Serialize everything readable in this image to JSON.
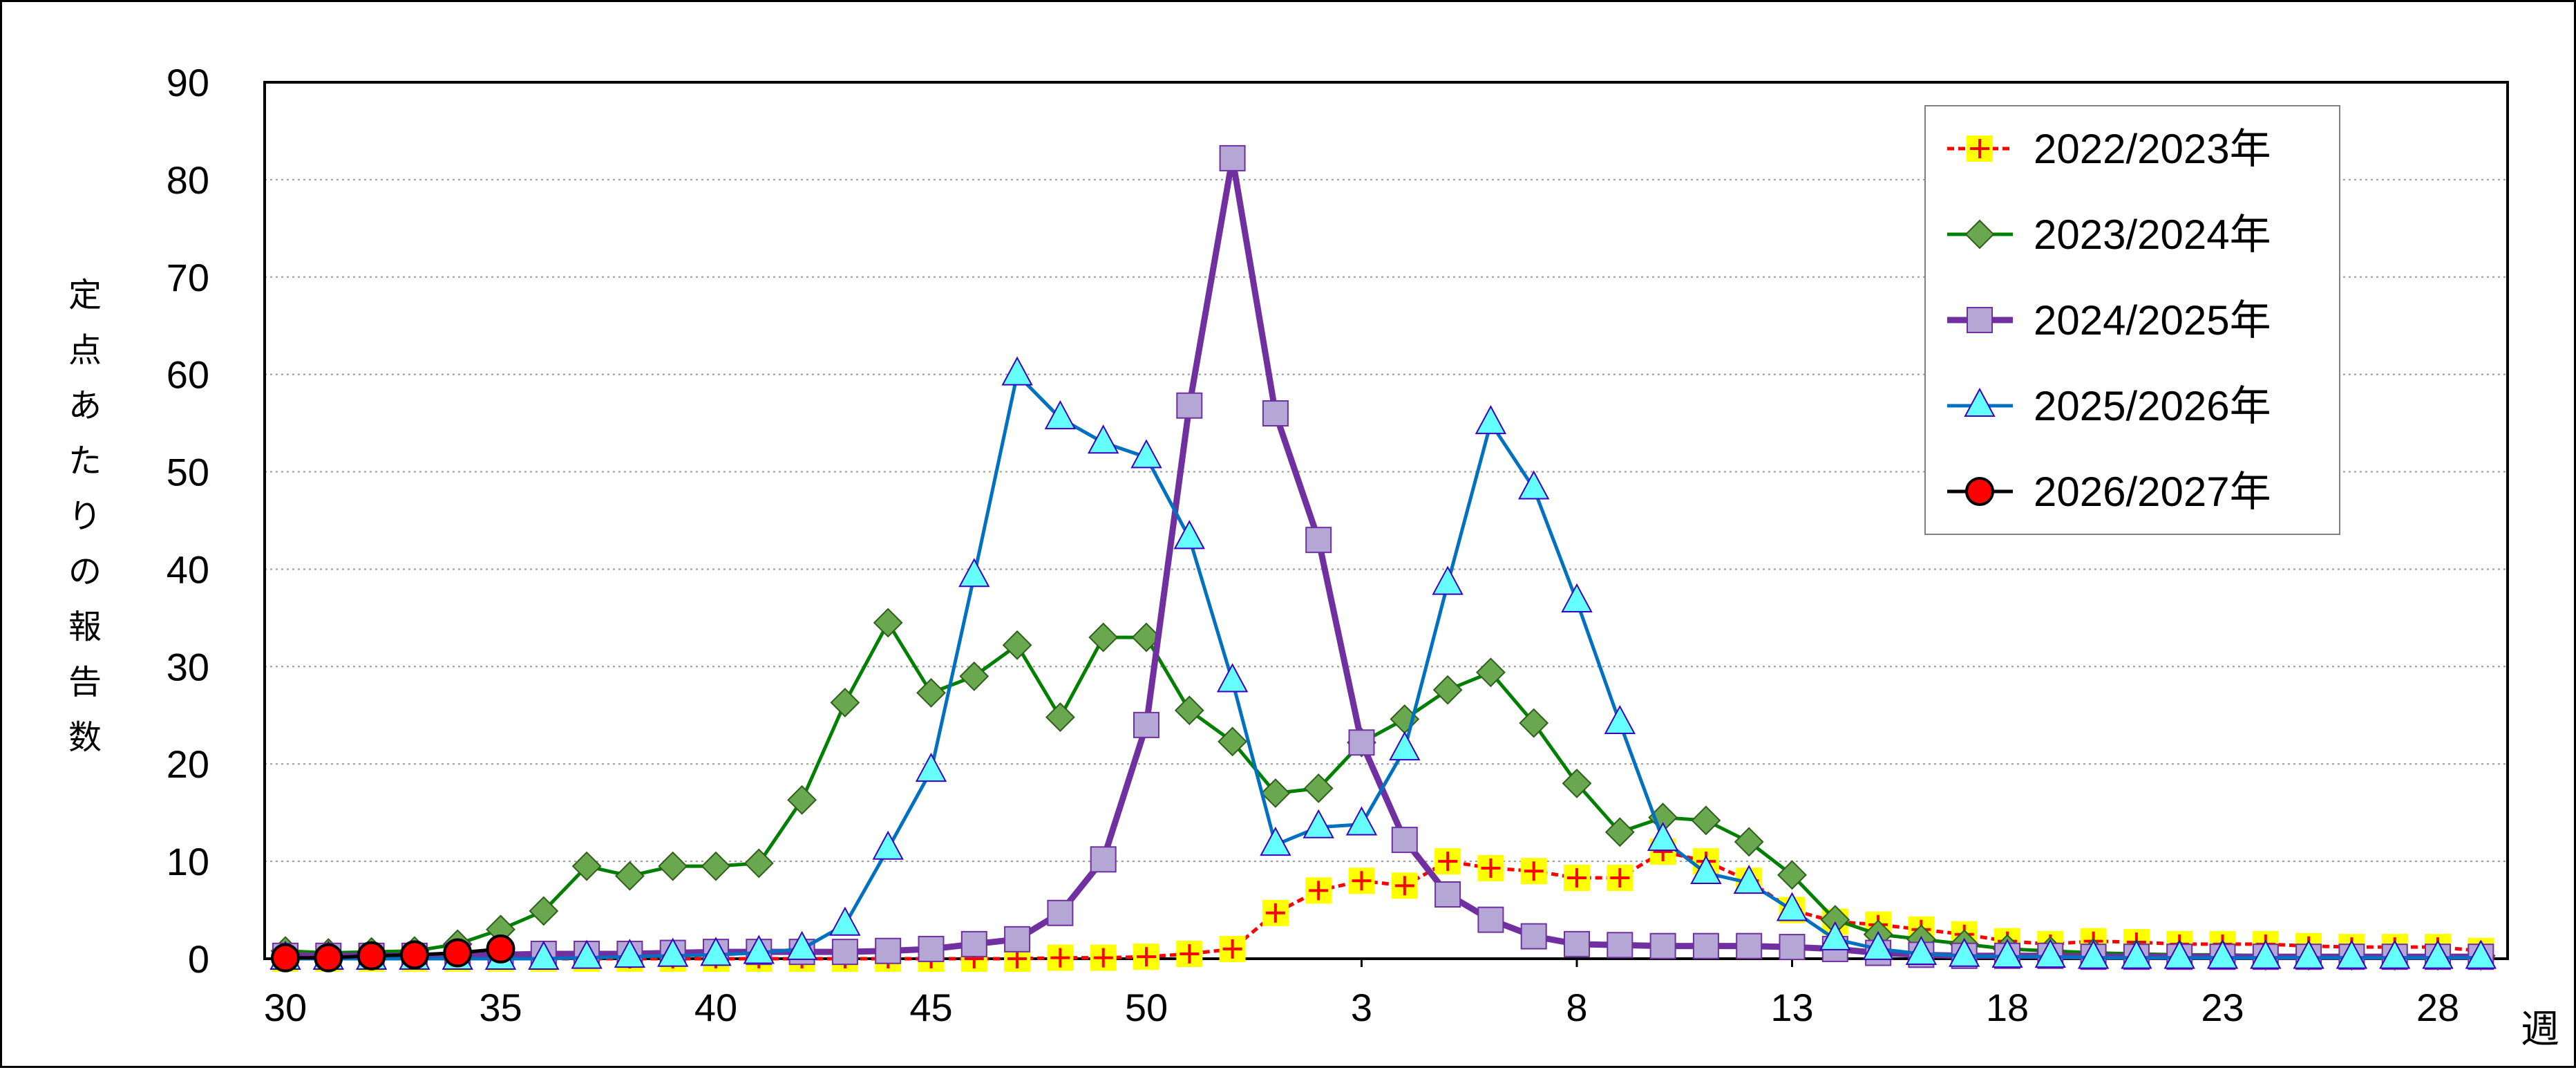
{
  "chart_data": {
    "type": "line",
    "title": "",
    "ylabel": "定点あたりの報告数",
    "xlabel": "週",
    "ylim": [
      0,
      90
    ],
    "yticks": [
      0,
      10,
      20,
      30,
      40,
      50,
      60,
      70,
      80,
      90
    ],
    "grid": "horizontal dotted",
    "legend_position": "top-right",
    "weeks": [
      30,
      31,
      32,
      33,
      34,
      35,
      36,
      37,
      38,
      39,
      40,
      41,
      42,
      43,
      44,
      45,
      46,
      47,
      48,
      49,
      50,
      51,
      52,
      1,
      2,
      3,
      4,
      5,
      6,
      7,
      8,
      9,
      10,
      11,
      12,
      13,
      14,
      15,
      16,
      17,
      18,
      19,
      20,
      21,
      22,
      23,
      24,
      25,
      26,
      27,
      28,
      29
    ],
    "xtick_labels": [
      "30",
      "35",
      "40",
      "45",
      "50",
      "3",
      "8",
      "13",
      "18",
      "23",
      "28"
    ],
    "series": [
      {
        "name": "2022/2023年",
        "color": "#ff0000",
        "marker": "cross-square",
        "marker_fill": "#ffff00",
        "line_style": "dashed",
        "values": [
          0.0,
          0.0,
          0.0,
          0.0,
          0.0,
          0.0,
          0.0,
          0.0,
          0.0,
          0.0,
          0.0,
          0.0,
          -0.2,
          -0.3,
          -0.2,
          -0.1,
          -0.1,
          0.0,
          0.1,
          0.1,
          0.2,
          0.5,
          1.0,
          4.7,
          7.0,
          8.0,
          7.5,
          10.0,
          9.3,
          9.0,
          8.3,
          8.3,
          11.0,
          10.0,
          8.0,
          5.0,
          3.8,
          3.5,
          3.0,
          2.5,
          1.8,
          1.5,
          1.8,
          1.7,
          1.5,
          1.5,
          1.5,
          1.3,
          1.2,
          1.2,
          1.2,
          0.8
        ]
      },
      {
        "name": "2023/2024年",
        "color": "#008000",
        "marker": "diamond",
        "marker_fill": "#6aa84f",
        "line_style": "solid",
        "values": [
          0.8,
          0.6,
          0.7,
          0.8,
          1.5,
          3.0,
          4.9,
          9.5,
          8.5,
          9.5,
          9.5,
          9.8,
          16.3,
          26.3,
          34.5,
          27.3,
          29.0,
          32.2,
          24.8,
          33.0,
          33.0,
          25.5,
          22.3,
          17.0,
          17.5,
          22.2,
          24.6,
          27.6,
          29.4,
          24.2,
          18.0,
          13.0,
          14.5,
          14.2,
          12.0,
          8.6,
          4.0,
          2.5,
          2.0,
          1.5,
          1.0,
          0.8,
          0.6,
          0.5,
          0.4,
          0.4,
          0.3,
          0.3,
          0.3,
          0.3,
          0.3,
          0.3
        ]
      },
      {
        "name": "2024/2025年",
        "color": "#7030a0",
        "marker": "square",
        "marker_fill": "#b4a7d6",
        "line_style": "solid-thick",
        "values": [
          0.3,
          0.3,
          0.3,
          0.3,
          0.3,
          0.4,
          0.5,
          0.5,
          0.5,
          0.6,
          0.7,
          0.7,
          0.7,
          0.7,
          0.8,
          1.0,
          1.5,
          2.0,
          4.7,
          10.2,
          24.0,
          56.8,
          82.2,
          56.0,
          43.0,
          22.2,
          12.2,
          6.6,
          4.0,
          2.3,
          1.5,
          1.4,
          1.3,
          1.3,
          1.3,
          1.2,
          1.0,
          0.6,
          0.4,
          0.3,
          0.3,
          0.3,
          0.2,
          0.2,
          0.2,
          0.2,
          0.2,
          0.2,
          0.2,
          0.2,
          0.2,
          0.2
        ]
      },
      {
        "name": "2025/2026年",
        "color": "#0070c0",
        "marker": "triangle",
        "marker_fill": "#66ffff",
        "line_style": "solid",
        "values": [
          0.0,
          0.0,
          0.0,
          0.0,
          0.0,
          0.0,
          0.0,
          0.1,
          0.2,
          0.3,
          0.4,
          0.6,
          1.0,
          3.5,
          11.3,
          19.3,
          39.3,
          60.0,
          55.5,
          53.0,
          51.5,
          43.2,
          28.5,
          11.7,
          13.5,
          13.8,
          21.5,
          38.5,
          55.0,
          48.3,
          36.7,
          24.2,
          12.2,
          8.8,
          7.8,
          5.0,
          2.0,
          1.0,
          0.5,
          0.3,
          0.2,
          0.2,
          0.1,
          0.1,
          0.1,
          0.1,
          0.1,
          0.1,
          0.1,
          0.1,
          0.1,
          0.1
        ]
      },
      {
        "name": "2026/2027年",
        "color": "#000000",
        "marker": "circle",
        "marker_fill": "#ff0000",
        "line_style": "solid",
        "values": [
          0.1,
          0.1,
          0.3,
          0.4,
          0.6,
          1.0
        ]
      }
    ]
  }
}
